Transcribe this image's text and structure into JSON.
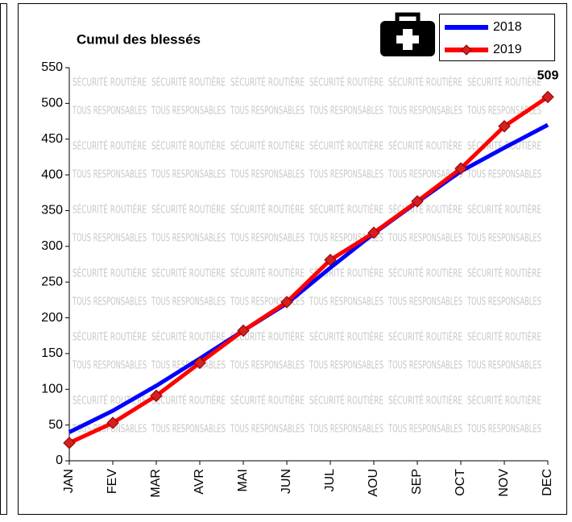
{
  "chart_data": {
    "type": "line",
    "title": "Cumul des blessés",
    "watermark": [
      "SÉCURITÉ ROUTIÈRE",
      "TOUS RESPONSABLES"
    ],
    "categories": [
      "JAN",
      "FEV",
      "MAR",
      "AVR",
      "MAI",
      "JUN",
      "JUL",
      "AOU",
      "SEP",
      "OCT",
      "NOV",
      "DEC"
    ],
    "series": [
      {
        "name": "2018",
        "color": "#0000ff",
        "values": [
          40,
          70,
          105,
          143,
          182,
          220,
          270,
          318,
          362,
          405,
          438,
          470
        ]
      },
      {
        "name": "2019",
        "color": "#ff0000",
        "values": [
          25,
          53,
          91,
          137,
          182,
          222,
          281,
          319,
          363,
          409,
          468,
          509
        ]
      }
    ],
    "ylim": [
      0,
      550
    ],
    "yticks": [
      0,
      50,
      100,
      150,
      200,
      250,
      300,
      350,
      400,
      450,
      500,
      550
    ],
    "legend": "top-right"
  }
}
